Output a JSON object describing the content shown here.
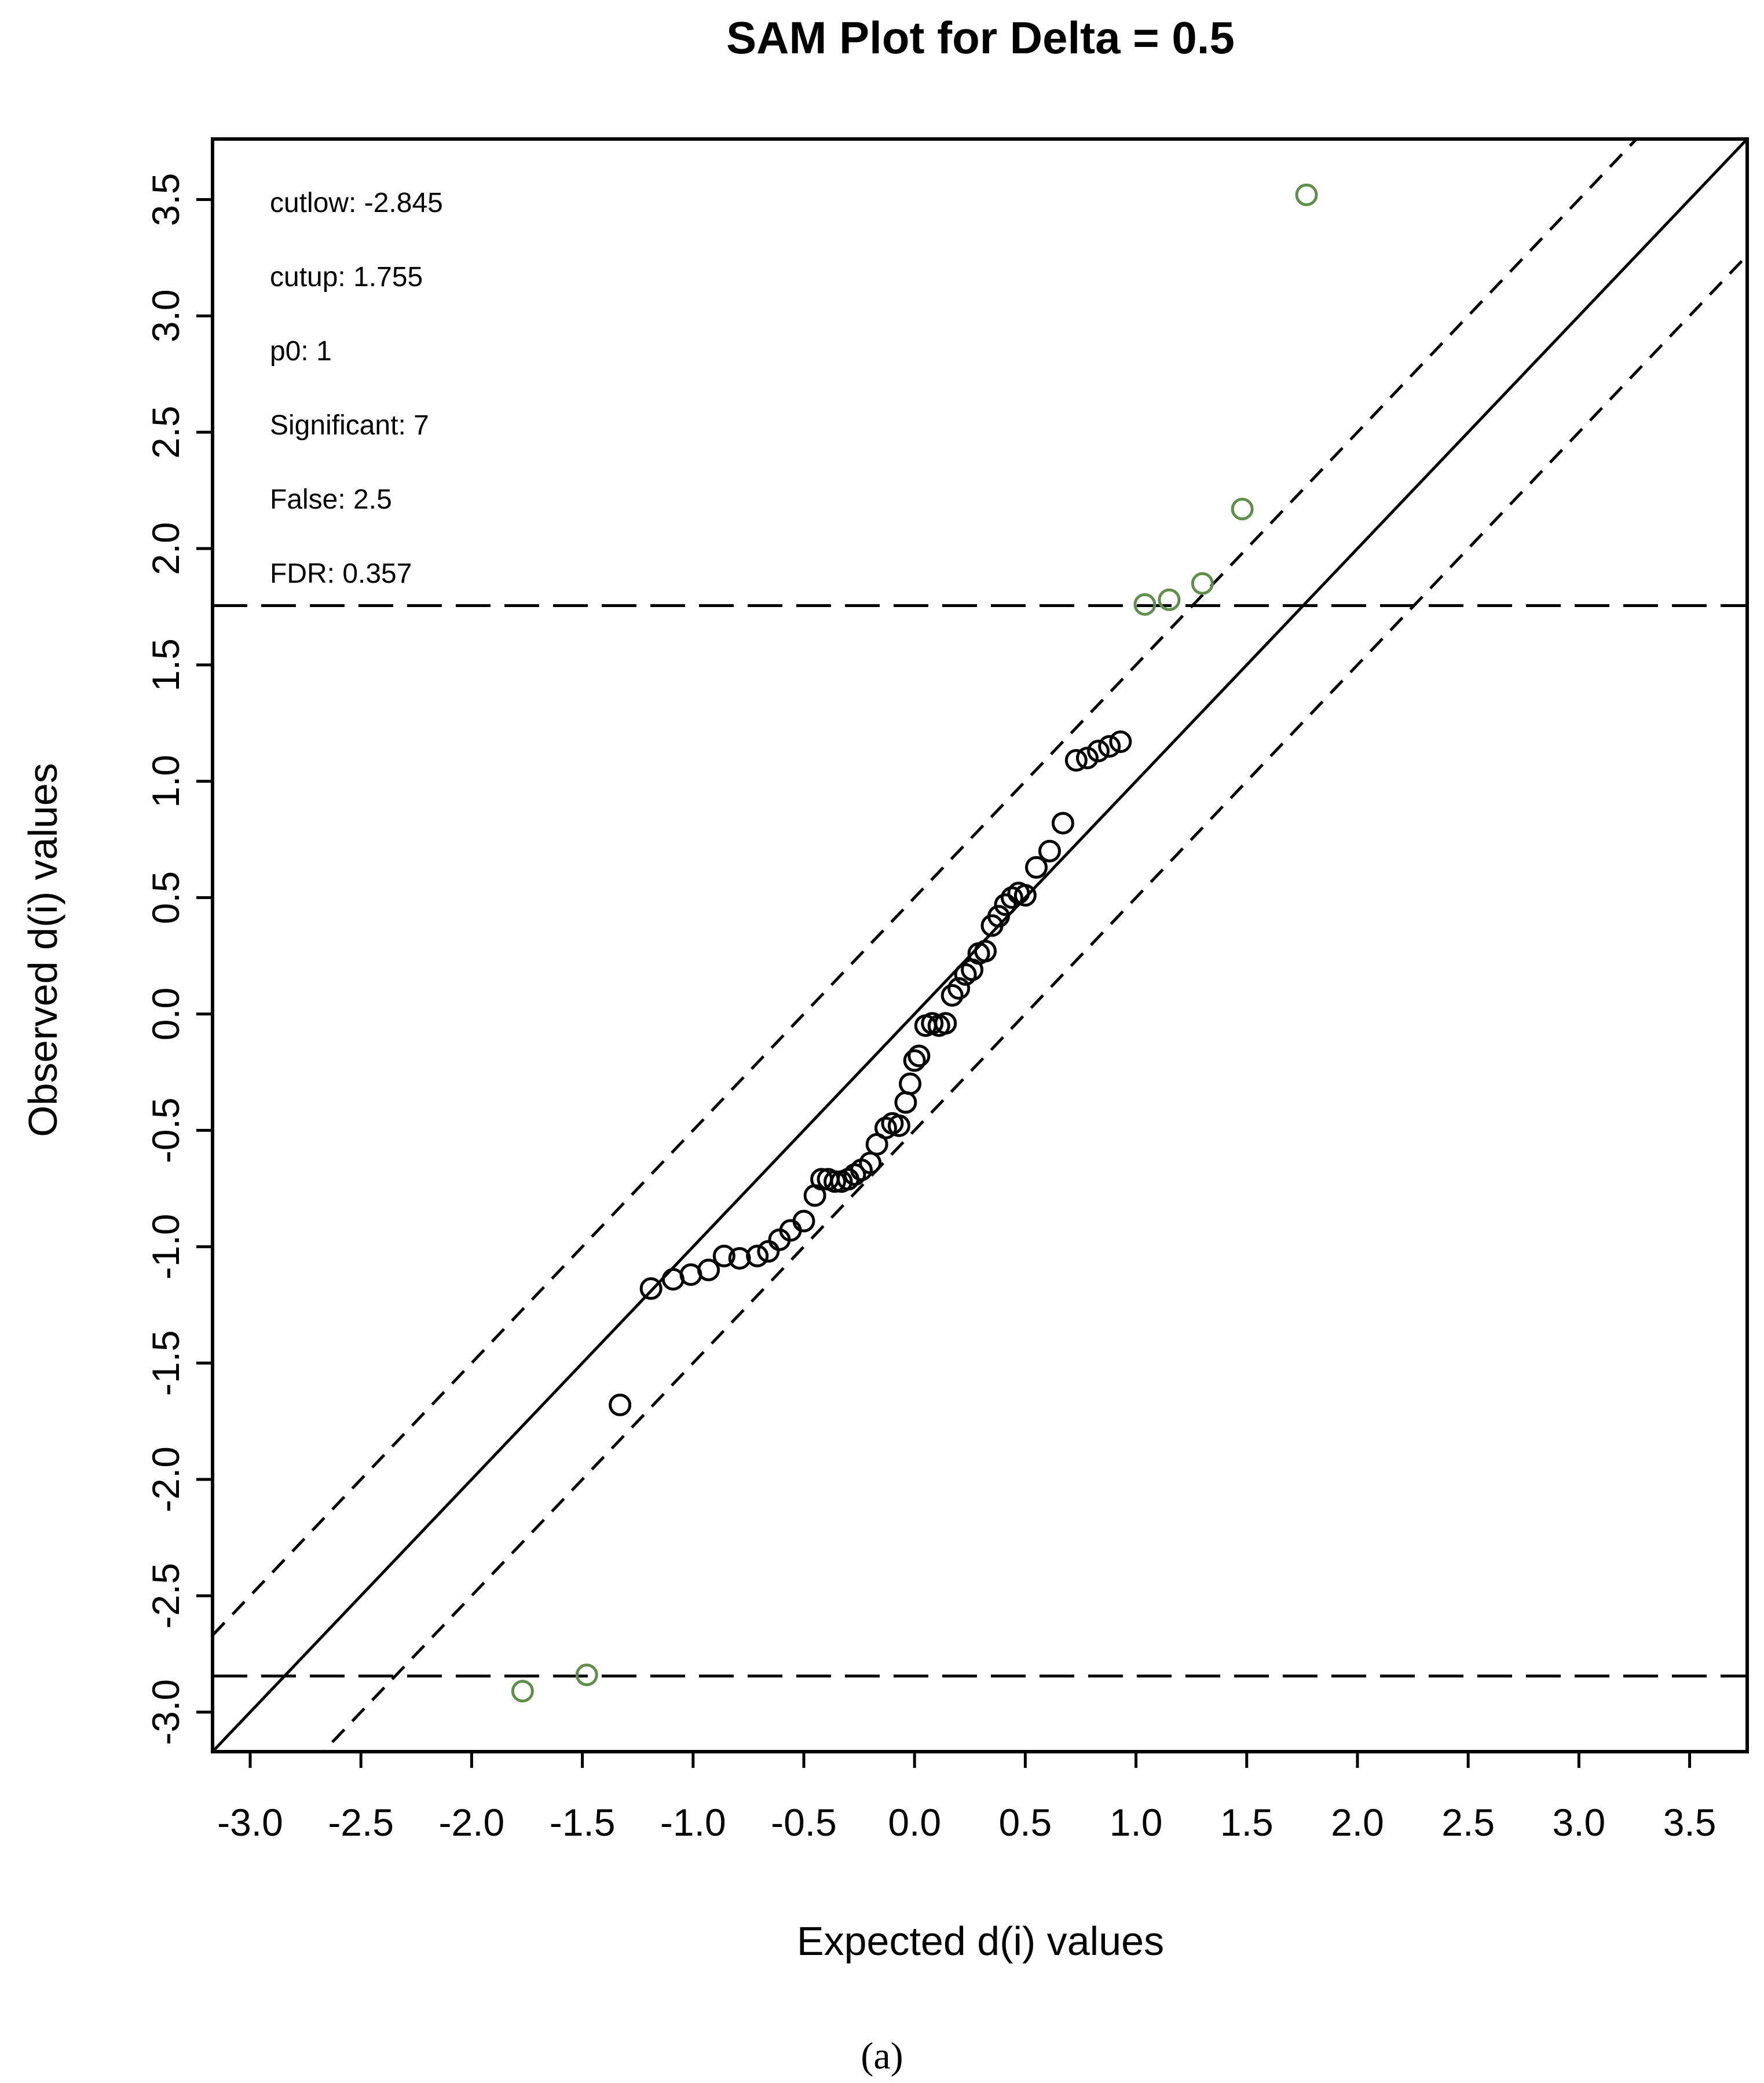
{
  "chart_data": {
    "type": "scatter",
    "title": "SAM Plot for Delta = 0.5",
    "xlabel": "Expected d(i) values",
    "ylabel": "Observed d(i) values",
    "xlim": [
      -3.17,
      3.76
    ],
    "ylim": [
      -3.17,
      3.76
    ],
    "x_ticks": [
      -3.0,
      -2.5,
      -2.0,
      -1.5,
      -1.0,
      -0.5,
      0.0,
      0.5,
      1.0,
      1.5,
      2.0,
      2.5,
      3.0,
      3.5
    ],
    "x_tick_labels": [
      "-3.0",
      "-2.5",
      "-2.0",
      "-1.5",
      "-1.0",
      "-0.5",
      "0.0",
      "0.5",
      "1.0",
      "1.5",
      "2.0",
      "2.5",
      "3.0",
      "3.5"
    ],
    "y_ticks": [
      -3.0,
      -2.5,
      -2.0,
      -1.5,
      -1.0,
      -0.5,
      0.0,
      0.5,
      1.0,
      1.5,
      2.0,
      2.5,
      3.0,
      3.5
    ],
    "y_tick_labels": [
      "-3.0",
      "-2.5",
      "-2.0",
      "-1.5",
      "-1.0",
      "-0.5",
      "0.0",
      "0.5",
      "1.0",
      "1.5",
      "2.0",
      "2.5",
      "3.0",
      "3.5"
    ],
    "grid": false,
    "delta": 0.5,
    "cutlow": -2.845,
    "cutup": 1.755,
    "stats": [
      {
        "label": "cutlow:",
        "value": "-2.845"
      },
      {
        "label": "cutup:",
        "value": "1.755"
      },
      {
        "label": "p0:",
        "value": "1"
      },
      {
        "label": "Significant:",
        "value": "7"
      },
      {
        "label": "False:",
        "value": "2.5"
      },
      {
        "label": "FDR:",
        "value": "0.357"
      }
    ],
    "series": [
      {
        "name": "non-significant",
        "color": "#000000",
        "x": [
          -1.33,
          -1.19,
          -1.09,
          -1.01,
          -0.93,
          -0.86,
          -0.79,
          -0.71,
          -0.66,
          -0.61,
          -0.56,
          -0.5,
          -0.45,
          -0.42,
          -0.39,
          -0.36,
          -0.33,
          -0.3,
          -0.27,
          -0.24,
          -0.2,
          -0.17,
          -0.13,
          -0.1,
          -0.07,
          -0.04,
          -0.02,
          0.0,
          0.02,
          0.05,
          0.08,
          0.11,
          0.14,
          0.17,
          0.2,
          0.23,
          0.26,
          0.29,
          0.32,
          0.35,
          0.38,
          0.41,
          0.44,
          0.47,
          0.5,
          0.55,
          0.61,
          0.67,
          0.73,
          0.78,
          0.83,
          0.88,
          0.93
        ],
        "y": [
          -1.68,
          -1.18,
          -1.14,
          -1.12,
          -1.1,
          -1.04,
          -1.05,
          -1.04,
          -1.02,
          -0.97,
          -0.93,
          -0.89,
          -0.78,
          -0.71,
          -0.71,
          -0.72,
          -0.72,
          -0.71,
          -0.69,
          -0.67,
          -0.64,
          -0.56,
          -0.49,
          -0.47,
          -0.48,
          -0.38,
          -0.3,
          -0.2,
          -0.18,
          -0.05,
          -0.04,
          -0.05,
          -0.04,
          0.08,
          0.11,
          0.17,
          0.19,
          0.26,
          0.27,
          0.38,
          0.42,
          0.47,
          0.5,
          0.52,
          0.51,
          0.63,
          0.7,
          0.82,
          1.09,
          1.1,
          1.13,
          1.15,
          1.17
        ]
      },
      {
        "name": "significant",
        "color": "#5f8f4a",
        "x": [
          -1.77,
          -1.48,
          1.04,
          1.15,
          1.3,
          1.48,
          1.77
        ],
        "y": [
          -2.91,
          -2.84,
          1.76,
          1.78,
          1.85,
          2.17,
          3.52
        ]
      }
    ],
    "lines": [
      {
        "name": "identity",
        "style": "solid",
        "slope": 1,
        "intercept": 0
      },
      {
        "name": "upper-delta-band",
        "style": "dashed",
        "slope": 1,
        "intercept": 0.5
      },
      {
        "name": "lower-delta-band",
        "style": "dashed",
        "slope": 1,
        "intercept": -0.5
      },
      {
        "name": "cutup-line",
        "style": "longdash",
        "y": 1.755
      },
      {
        "name": "cutlow-line",
        "style": "longdash",
        "y": -2.845
      }
    ]
  },
  "caption": "(a)"
}
